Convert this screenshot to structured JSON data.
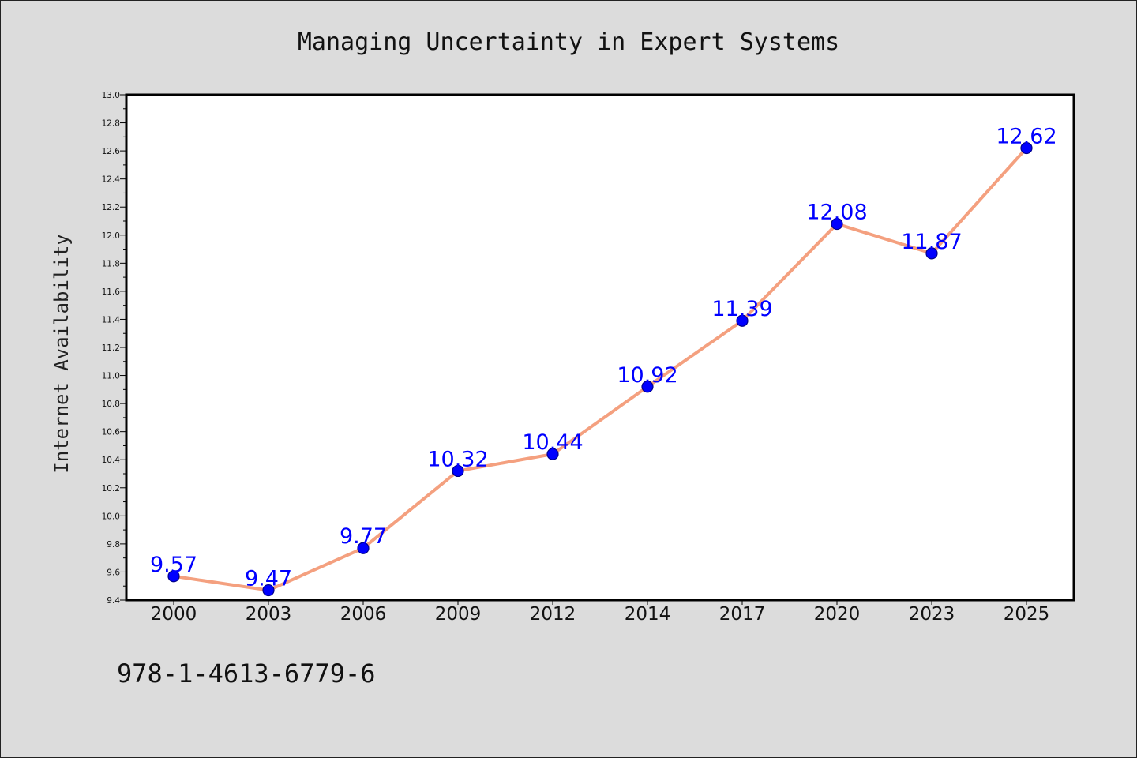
{
  "footer": {
    "isbn": "978-1-4613-6779-6"
  },
  "chart_data": {
    "type": "line",
    "title": "Managing Uncertainty in Expert Systems",
    "xlabel": "",
    "ylabel": "Internet Availability",
    "categories": [
      "2000",
      "2003",
      "2006",
      "2009",
      "2012",
      "2014",
      "2017",
      "2020",
      "2023",
      "2025"
    ],
    "values": [
      9.57,
      9.47,
      9.77,
      10.32,
      10.44,
      10.92,
      11.39,
      12.08,
      11.87,
      12.62
    ],
    "data_labels": [
      "9.57",
      "9.47",
      "9.77",
      "10.32",
      "10.44",
      "10.92",
      "11.39",
      "12.08",
      "11.87",
      "12.62"
    ],
    "ylim": [
      9.4,
      13.0
    ],
    "yticks": [
      "9.4",
      "9.6",
      "9.8",
      "10.0",
      "10.2",
      "10.4",
      "10.6",
      "10.8",
      "11.0",
      "11.2",
      "11.4",
      "11.6",
      "11.8",
      "12.0",
      "12.2",
      "12.4",
      "12.6",
      "12.8",
      "13.0"
    ],
    "grid": false,
    "legend": "none",
    "colors": {
      "line": "#f4a07f",
      "marker": "#0000ff",
      "marker_edge": "#00008b",
      "labels": "#0000ff",
      "background": "#dcdcdc",
      "plot_background": "#ffffff"
    }
  }
}
